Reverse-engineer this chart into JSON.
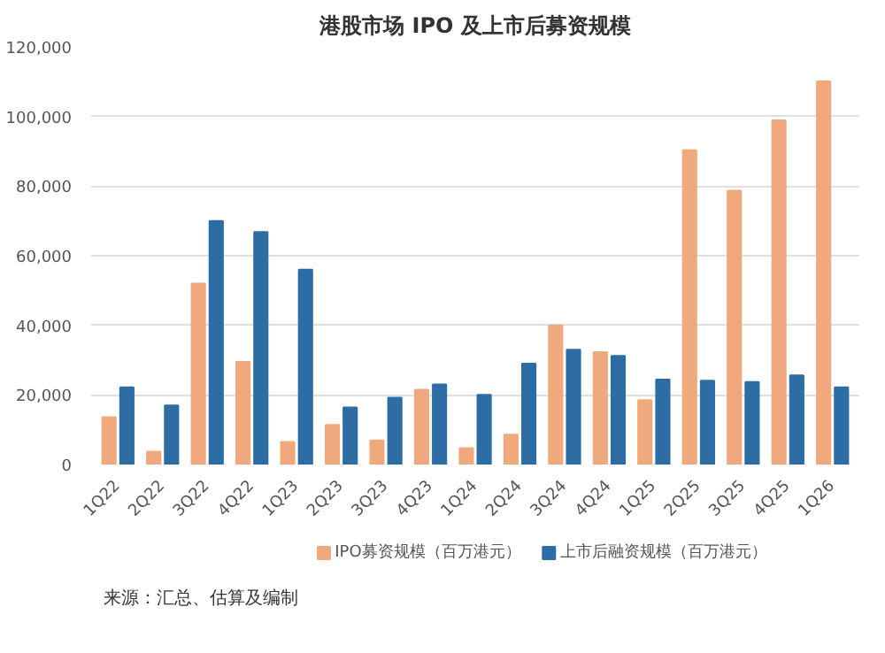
{
  "chart_data": {
    "type": "bar",
    "title": "港股市场 IPO 及上市后募资规模",
    "categories": [
      "1Q22",
      "2Q22",
      "3Q22",
      "4Q22",
      "1Q23",
      "2Q23",
      "3Q23",
      "4Q23",
      "1Q24",
      "2Q24",
      "3Q24",
      "4Q24",
      "1Q25",
      "2Q25",
      "3Q25",
      "4Q25",
      "1Q26"
    ],
    "series": [
      {
        "name": "IPO募资规模（百万港元）",
        "color": "#f0a97c",
        "values": [
          13600,
          3700,
          52000,
          29500,
          6500,
          11400,
          6900,
          21500,
          4700,
          8600,
          40000,
          32300,
          18500,
          90300,
          78700,
          98900,
          110100
        ]
      },
      {
        "name": "上市后融资规模（百万港元）",
        "color": "#2e6da4",
        "values": [
          22200,
          17000,
          70000,
          66800,
          56000,
          16400,
          19200,
          23000,
          20000,
          29000,
          33000,
          31200,
          24400,
          24100,
          23700,
          25600,
          22200
        ]
      }
    ],
    "ylim": [
      0,
      120000
    ],
    "yticks": [
      {
        "value": 0,
        "label": "0"
      },
      {
        "value": 20000,
        "label": "20,000"
      },
      {
        "value": 40000,
        "label": "40,000"
      },
      {
        "value": 60000,
        "label": "60,000"
      },
      {
        "value": 80000,
        "label": "80,000"
      },
      {
        "value": 100000,
        "label": "100,000"
      },
      {
        "value": 120000,
        "label": "120,000"
      }
    ],
    "grid": "y",
    "legend": "bottom",
    "annotations": [
      "来源：汇总、估算及编制"
    ]
  }
}
